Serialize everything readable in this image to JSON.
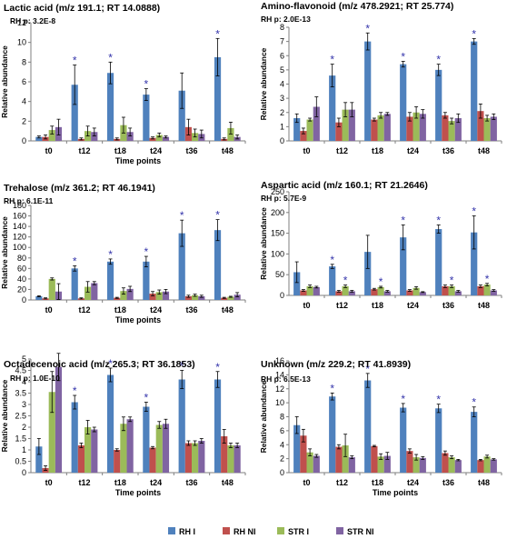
{
  "colors": {
    "RH I": "#4f81bd",
    "RH NI": "#c0504d",
    "STR I": "#9bbb59",
    "STR NI": "#8064a2",
    "sig": "#3333aa",
    "axis": "#7f7f7f"
  },
  "legend": [
    {
      "name": "RH I",
      "color": "#4f81bd"
    },
    {
      "name": "RH NI",
      "color": "#c0504d"
    },
    {
      "name": "STR I",
      "color": "#9bbb59"
    },
    {
      "name": "STR NI",
      "color": "#8064a2"
    }
  ],
  "chart_data": [
    {
      "type": "bar",
      "title": "Lactic acid (m/z 191.1; RT 14.0888)",
      "subtitle": "RH p: 3.2E-8",
      "xlabel": "Time points",
      "ylabel": "Relative abundance",
      "categories": [
        "t0",
        "t12",
        "t18",
        "t24",
        "t36",
        "t48"
      ],
      "ylim": [
        0,
        12
      ],
      "yticks": [
        0,
        2,
        4,
        6,
        8,
        10,
        12
      ],
      "series": [
        {
          "name": "RH I",
          "values": [
            0.4,
            5.7,
            6.9,
            4.7,
            5.1,
            8.5
          ],
          "errors": [
            0.1,
            2.0,
            1.1,
            0.6,
            1.8,
            1.9
          ]
        },
        {
          "name": "RH NI",
          "values": [
            0.4,
            0.2,
            0.2,
            0.3,
            1.4,
            0.2
          ],
          "errors": [
            0.2,
            0.1,
            0.1,
            0.1,
            0.8,
            0.1
          ]
        },
        {
          "name": "STR I",
          "values": [
            1.1,
            1.0,
            1.6,
            0.6,
            0.8,
            1.3
          ],
          "errors": [
            0.4,
            0.5,
            0.8,
            0.2,
            0.4,
            0.6
          ]
        },
        {
          "name": "STR NI",
          "values": [
            1.4,
            0.9,
            0.9,
            0.4,
            0.7,
            0.4
          ],
          "errors": [
            0.8,
            0.4,
            0.4,
            0.1,
            0.4,
            0.2
          ]
        }
      ],
      "significant": [
        1,
        2,
        3,
        5
      ]
    },
    {
      "type": "bar",
      "title": "Amino-flavonoid (m/z 478.2921; RT 25.774)",
      "subtitle": "RH p: 2.0E-13",
      "xlabel": "",
      "ylabel": "Relative abundance",
      "categories": [
        "t0",
        "t12",
        "t18",
        "t24",
        "t36",
        "t48"
      ],
      "ylim": [
        0,
        8
      ],
      "yticks": [
        0,
        1,
        2,
        3,
        4,
        5,
        6,
        7,
        8
      ],
      "series": [
        {
          "name": "RH I",
          "values": [
            1.6,
            4.6,
            7.0,
            5.4,
            5.0,
            7.0
          ],
          "errors": [
            0.3,
            0.8,
            0.6,
            0.2,
            0.4,
            0.2
          ]
        },
        {
          "name": "RH NI",
          "values": [
            0.7,
            1.3,
            1.5,
            1.7,
            1.8,
            2.1
          ],
          "errors": [
            0.2,
            0.3,
            0.1,
            0.3,
            0.2,
            0.5
          ]
        },
        {
          "name": "STR I",
          "values": [
            1.5,
            2.2,
            1.8,
            2.0,
            1.4,
            1.6
          ],
          "errors": [
            0.1,
            0.5,
            0.2,
            0.4,
            0.2,
            0.2
          ]
        },
        {
          "name": "STR NI",
          "values": [
            2.4,
            2.2,
            1.9,
            1.9,
            1.6,
            1.7
          ],
          "errors": [
            0.7,
            0.5,
            0.1,
            0.3,
            0.3,
            0.2
          ]
        }
      ],
      "significant": [
        1,
        2,
        3,
        4,
        5
      ]
    },
    {
      "type": "bar",
      "title": "Trehalose (m/z 361.2; RT 46.1941)",
      "subtitle": "RH p: 6.1E-11",
      "xlabel": "Time points",
      "ylabel": "Relative abundance",
      "categories": [
        "t0",
        "t12",
        "t18",
        "t24",
        "t36",
        "t48"
      ],
      "ylim": [
        0,
        180
      ],
      "yticks": [
        0,
        20,
        40,
        60,
        80,
        100,
        120,
        140,
        160,
        180
      ],
      "series": [
        {
          "name": "RH I",
          "values": [
            7,
            60,
            73,
            73,
            127,
            133
          ],
          "errors": [
            1,
            5,
            5,
            10,
            25,
            20
          ]
        },
        {
          "name": "RH NI",
          "values": [
            3,
            3,
            4,
            12,
            7,
            4
          ],
          "errors": [
            1,
            1,
            1,
            4,
            2,
            1
          ]
        },
        {
          "name": "STR I",
          "values": [
            40,
            25,
            17,
            15,
            9,
            6
          ],
          "errors": [
            2,
            10,
            6,
            4,
            2,
            1
          ]
        },
        {
          "name": "STR NI",
          "values": [
            16,
            32,
            21,
            16,
            7,
            10
          ],
          "errors": [
            15,
            3,
            5,
            4,
            2,
            4
          ]
        }
      ],
      "significant": [
        1,
        2,
        3,
        4,
        5
      ]
    },
    {
      "type": "bar",
      "title": "Aspartic acid (m/z 160.1; RT 21.2646)",
      "subtitle": "RH p: 5.7E-9",
      "xlabel": "",
      "ylabel": "Relative abundance",
      "categories": [
        "t0",
        "t12",
        "t18",
        "t24",
        "t36",
        "t48"
      ],
      "ylim": [
        0,
        250
      ],
      "yticks": [
        0,
        50,
        100,
        150,
        200,
        250
      ],
      "series": [
        {
          "name": "RH I",
          "values": [
            56,
            70,
            105,
            140,
            160,
            152
          ],
          "errors": [
            25,
            5,
            40,
            30,
            10,
            40
          ]
        },
        {
          "name": "RH NI",
          "values": [
            12,
            10,
            15,
            12,
            22,
            22
          ],
          "errors": [
            2,
            2,
            2,
            2,
            3,
            3
          ]
        },
        {
          "name": "STR I",
          "values": [
            22,
            22,
            20,
            18,
            22,
            26
          ],
          "errors": [
            3,
            3,
            2,
            3,
            3,
            3
          ]
        },
        {
          "name": "STR NI",
          "values": [
            20,
            10,
            10,
            8,
            10,
            12
          ],
          "errors": [
            2,
            2,
            2,
            1,
            2,
            2
          ]
        }
      ],
      "significant": [
        1,
        3,
        4,
        5
      ],
      "significant_str": [
        1,
        2,
        4,
        5
      ]
    },
    {
      "type": "bar",
      "title": "Octadecenoic acid (m/z 265.3; RT 36.1853)",
      "subtitle": "RH p: 1.0E-10",
      "xlabel": "Time points",
      "ylabel": "Relative abundance",
      "categories": [
        "t0",
        "t12",
        "t18",
        "t24",
        "t36",
        "t48"
      ],
      "ylim": [
        0,
        5
      ],
      "yticks": [
        0,
        0.5,
        1,
        1.5,
        2,
        2.5,
        3,
        3.5,
        4,
        4.5,
        5
      ],
      "series": [
        {
          "name": "RH I",
          "values": [
            1.15,
            3.1,
            4.3,
            2.9,
            4.1,
            4.1
          ],
          "errors": [
            0.35,
            0.3,
            0.3,
            0.2,
            0.4,
            0.35
          ]
        },
        {
          "name": "RH NI",
          "values": [
            0.2,
            1.2,
            1.0,
            1.1,
            1.3,
            1.6
          ],
          "errors": [
            0.1,
            0.1,
            0.05,
            0.05,
            0.1,
            0.3
          ]
        },
        {
          "name": "STR I",
          "values": [
            3.55,
            2.0,
            2.15,
            2.1,
            1.3,
            1.2
          ],
          "errors": [
            0.9,
            0.3,
            0.3,
            0.15,
            0.1,
            0.1
          ]
        },
        {
          "name": "STR NI",
          "values": [
            4.65,
            1.9,
            2.35,
            2.15,
            1.4,
            1.2
          ],
          "errors": [
            0.6,
            0.1,
            0.1,
            0.2,
            0.1,
            0.1
          ]
        }
      ],
      "significant": [
        1,
        2,
        3,
        4,
        5
      ]
    },
    {
      "type": "bar",
      "title": "Unknown (m/z 229.2; RT 41.8939)",
      "subtitle": "RH p: 6.5E-13",
      "xlabel": "Time points",
      "ylabel": "Relative abundance",
      "categories": [
        "t0",
        "t12",
        "t18",
        "t24",
        "t36",
        "t48"
      ],
      "ylim": [
        0,
        16
      ],
      "yticks": [
        0,
        2,
        4,
        6,
        8,
        10,
        12,
        14,
        16
      ],
      "series": [
        {
          "name": "RH I",
          "values": [
            6.8,
            10.9,
            13.2,
            9.3,
            9.2,
            8.7
          ],
          "errors": [
            1.2,
            0.5,
            1.0,
            0.6,
            0.6,
            0.7
          ]
        },
        {
          "name": "RH NI",
          "values": [
            5.3,
            3.7,
            3.8,
            3.1,
            2.8,
            1.8
          ],
          "errors": [
            0.9,
            0.3,
            0.1,
            0.3,
            0.3,
            0.1
          ]
        },
        {
          "name": "STR I",
          "values": [
            2.9,
            3.9,
            2.3,
            2.2,
            2.2,
            2.3
          ],
          "errors": [
            0.5,
            1.6,
            0.4,
            0.4,
            0.2,
            0.2
          ]
        },
        {
          "name": "STR NI",
          "values": [
            2.4,
            2.2,
            2.4,
            2.1,
            1.8,
            1.9
          ],
          "errors": [
            0.2,
            0.2,
            0.5,
            0.2,
            0.1,
            0.1
          ]
        }
      ],
      "significant": [
        1,
        2,
        3,
        4,
        5
      ]
    }
  ]
}
